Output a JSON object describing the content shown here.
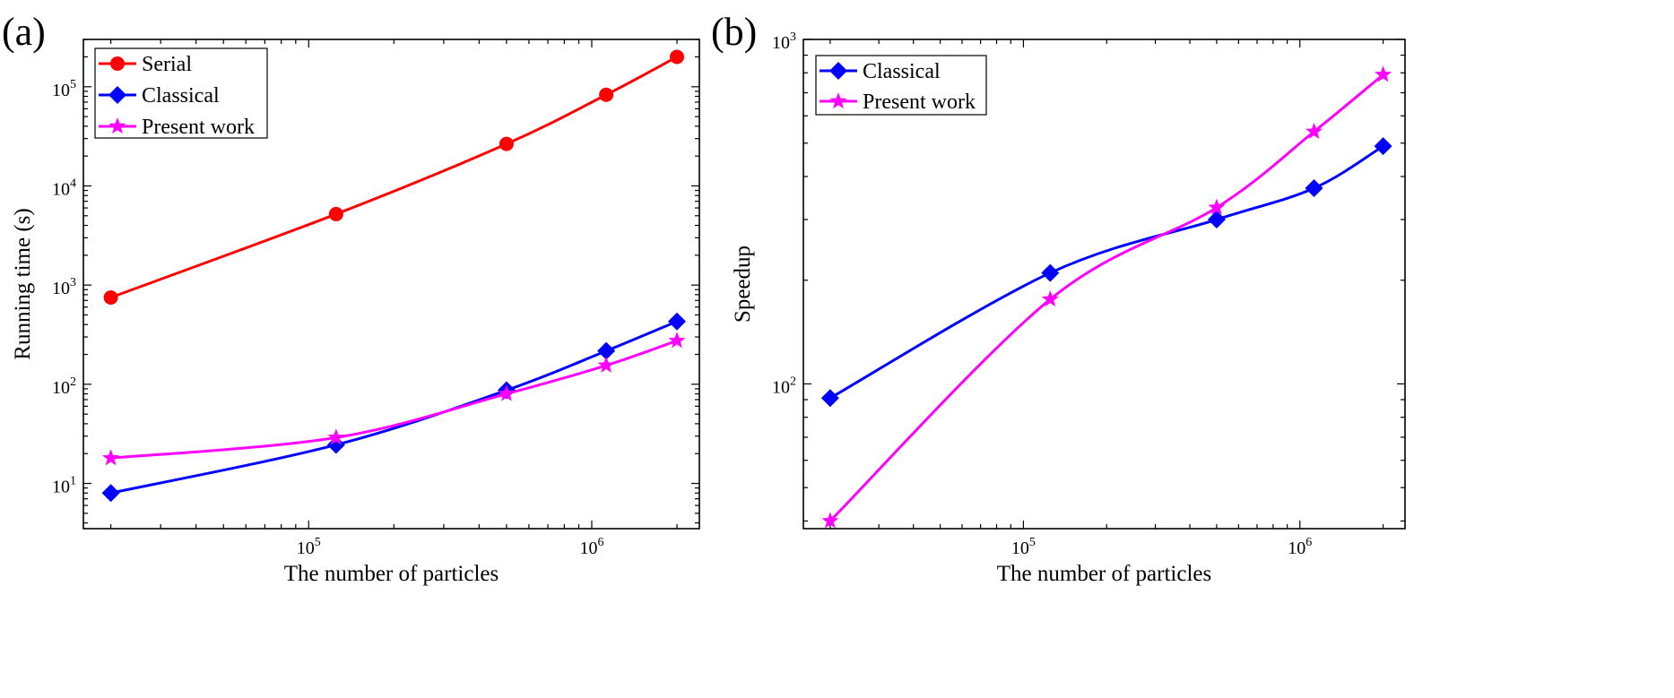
{
  "chart_data": [
    {
      "panel_label": "(a)",
      "type": "line",
      "xscale": "log",
      "yscale": "log",
      "xlabel": "The number of particles",
      "ylabel": "Running time (s)",
      "xlim": [
        16000,
        2400000
      ],
      "ylim": [
        3.5,
        300000
      ],
      "x": [
        20000,
        125000,
        500000,
        1125000,
        2000000
      ],
      "xticks": [
        {
          "value": 100000,
          "base": "10",
          "exp": "5"
        },
        {
          "value": 1000000,
          "base": "10",
          "exp": "6"
        }
      ],
      "yticks": [
        {
          "value": 10,
          "base": "10",
          "exp": "1"
        },
        {
          "value": 100,
          "base": "10",
          "exp": "2"
        },
        {
          "value": 1000,
          "base": "10",
          "exp": "3"
        },
        {
          "value": 10000,
          "base": "10",
          "exp": "4"
        },
        {
          "value": 100000,
          "base": "10",
          "exp": "5"
        }
      ],
      "legend_position": "top-left",
      "series": [
        {
          "name": "Serial",
          "color": "#ff0000",
          "marker": "circle",
          "values": [
            750,
            5200,
            26500,
            83000,
            200000
          ]
        },
        {
          "name": "Classical",
          "color": "#0000ff",
          "marker": "diamond",
          "values": [
            8,
            24.5,
            87,
            217,
            430
          ]
        },
        {
          "name": "Present work",
          "color": "#ff00ff",
          "marker": "star",
          "values": [
            18,
            29,
            80,
            155,
            275
          ]
        }
      ]
    },
    {
      "panel_label": "(b)",
      "type": "line",
      "xscale": "log",
      "yscale": "log",
      "xlabel": "The number of particles",
      "ylabel": "Speedup",
      "xlim": [
        16000,
        2400000
      ],
      "ylim": [
        38,
        1000
      ],
      "x": [
        20000,
        125000,
        500000,
        1125000,
        2000000
      ],
      "xticks": [
        {
          "value": 100000,
          "base": "10",
          "exp": "5"
        },
        {
          "value": 1000000,
          "base": "10",
          "exp": "6"
        }
      ],
      "yticks": [
        {
          "value": 100,
          "base": "10",
          "exp": "2"
        },
        {
          "value": 1000,
          "base": "10",
          "exp": "3"
        }
      ],
      "legend_position": "top-left",
      "series": [
        {
          "name": "Classical",
          "color": "#0000ff",
          "marker": "diamond",
          "values": [
            91,
            210,
            300,
            370,
            490
          ]
        },
        {
          "name": "Present work",
          "color": "#ff00ff",
          "marker": "star",
          "values": [
            40,
            176,
            325,
            540,
            790
          ]
        }
      ]
    }
  ]
}
